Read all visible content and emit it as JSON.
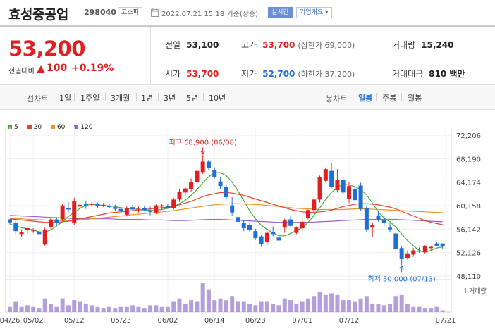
{
  "header": {
    "name": "효성중공업",
    "code": "298040",
    "market": "코스피",
    "time": "2022.07.21 15:18 기준(장중)",
    "live": "실시간",
    "company_info": "기업개요 ▾"
  },
  "quote": {
    "price": "53,200",
    "change_label": "전일대비",
    "change": "100",
    "change_pct": "+0.19%",
    "prev": {
      "label": "전일",
      "value": "53,100"
    },
    "high": {
      "label": "고가",
      "value": "53,700",
      "sub": "(상한가 69,000)"
    },
    "volume": {
      "label": "거래량",
      "value": "15,240"
    },
    "open": {
      "label": "시가",
      "value": "53,700"
    },
    "low": {
      "label": "저가",
      "value": "52,700",
      "sub": "(하한가 37,200)"
    },
    "amount": {
      "label": "거래대금",
      "value": "810 백만"
    }
  },
  "periods": {
    "line_label": "선차트",
    "line_items": [
      "1일",
      "1주일",
      "3개월",
      "1년",
      "3년",
      "5년",
      "10년"
    ],
    "candle_label": "봉차트",
    "candle_items": [
      "일봉",
      "주봉",
      "월봉"
    ],
    "active": "일봉"
  },
  "colors": {
    "up": "#e02020",
    "down": "#1e6fd9",
    "ma5": "#44aa33",
    "ma20": "#e8442a",
    "ma60": "#e8952a",
    "ma120": "#9a5fd0",
    "volume": "#9a7fcf"
  },
  "chart_data": {
    "type": "candlestick",
    "legend": [
      "5",
      "20",
      "60",
      "120"
    ],
    "ylim": [
      48110,
      72206
    ],
    "y_ticks": [
      "72,206",
      "68,190",
      "64,174",
      "60,158",
      "56,142",
      "52,126",
      "48,110"
    ],
    "x_ticks": [
      "04/26",
      "05/02",
      "05/12",
      "05/23",
      "06/02",
      "06/14",
      "06/23",
      "07/01",
      "07/12",
      "07/21"
    ],
    "high_label": "최고 68,900 (06/08)",
    "low_label": "최저 50,000 (07/13)",
    "volume_label": "거래량",
    "candles": [
      [
        57800,
        57900,
        57000,
        57300
      ],
      [
        57200,
        57600,
        55300,
        55800
      ],
      [
        55300,
        56100,
        54800,
        55600
      ],
      [
        56000,
        56600,
        55400,
        56300
      ],
      [
        55800,
        56300,
        55500,
        55900
      ],
      [
        55600,
        55900,
        54700,
        55300
      ],
      [
        53500,
        56400,
        53300,
        56000
      ],
      [
        56500,
        58100,
        56200,
        57800
      ],
      [
        57800,
        58200,
        56800,
        57200
      ],
      [
        57800,
        60500,
        57500,
        60200
      ],
      [
        59700,
        60800,
        59000,
        59500
      ],
      [
        57200,
        61500,
        56800,
        61000
      ],
      [
        60000,
        61200,
        59400,
        60300
      ],
      [
        60500,
        61000,
        59600,
        60200
      ],
      [
        60300,
        60800,
        60000,
        60500
      ],
      [
        60400,
        60700,
        59800,
        60100
      ],
      [
        60200,
        60600,
        59900,
        60300
      ],
      [
        60100,
        60500,
        59700,
        59900
      ],
      [
        59900,
        60300,
        59300,
        59600
      ],
      [
        59600,
        60200,
        58800,
        59200
      ],
      [
        58600,
        60100,
        58300,
        59800
      ],
      [
        59900,
        60300,
        59300,
        59500
      ],
      [
        59600,
        60000,
        59000,
        59800
      ],
      [
        59700,
        60100,
        59200,
        59400
      ],
      [
        59400,
        60000,
        58500,
        59100
      ],
      [
        59000,
        60500,
        58700,
        60200
      ],
      [
        60000,
        60500,
        59500,
        60200
      ],
      [
        60100,
        60500,
        59600,
        59800
      ],
      [
        59800,
        61500,
        59500,
        61200
      ],
      [
        61200,
        63000,
        60800,
        62500
      ],
      [
        62400,
        63500,
        61900,
        63100
      ],
      [
        63000,
        64800,
        62500,
        64200
      ],
      [
        64200,
        66400,
        63900,
        66100
      ],
      [
        65900,
        68900,
        65600,
        67700
      ],
      [
        67700,
        68000,
        66300,
        66600
      ],
      [
        66300,
        66700,
        64800,
        65100
      ],
      [
        64300,
        65000,
        63000,
        63500
      ],
      [
        63300,
        63800,
        61200,
        61600
      ],
      [
        60200,
        61600,
        58400,
        59000
      ],
      [
        58200,
        59000,
        56800,
        57400
      ],
      [
        57200,
        57700,
        55800,
        56300
      ],
      [
        56900,
        57300,
        55600,
        56000
      ],
      [
        55800,
        56200,
        54300,
        54600
      ],
      [
        54900,
        55200,
        53100,
        53600
      ],
      [
        54000,
        55800,
        53500,
        55500
      ],
      [
        55600,
        56600,
        54900,
        55300
      ],
      [
        54700,
        55200,
        53900,
        54200
      ],
      [
        56400,
        57900,
        55500,
        57600
      ],
      [
        57800,
        58500,
        56500,
        56700
      ],
      [
        55500,
        56600,
        55300,
        56400
      ],
      [
        56300,
        57900,
        55600,
        57400
      ],
      [
        58000,
        59500,
        57800,
        59400
      ],
      [
        59400,
        61400,
        59000,
        61200
      ],
      [
        61200,
        65300,
        60700,
        65000
      ],
      [
        64400,
        66700,
        64100,
        66400
      ],
      [
        66100,
        67400,
        63100,
        63400
      ],
      [
        62800,
        66400,
        62400,
        64600
      ],
      [
        64600,
        65000,
        62200,
        62400
      ],
      [
        61300,
        64200,
        60600,
        63500
      ],
      [
        63000,
        63500,
        60900,
        61100
      ],
      [
        63600,
        64100,
        59300,
        59600
      ],
      [
        59800,
        60200,
        55600,
        56100
      ],
      [
        56400,
        57300,
        54800,
        56800
      ],
      [
        58500,
        59200,
        57400,
        57800
      ],
      [
        57700,
        58500,
        56700,
        57200
      ],
      [
        56400,
        57200,
        55700,
        56100
      ],
      [
        55400,
        55900,
        52500,
        52800
      ],
      [
        52900,
        53300,
        50000,
        51000
      ],
      [
        51200,
        52500,
        50900,
        52000
      ],
      [
        51800,
        52900,
        51400,
        52500
      ],
      [
        52400,
        53000,
        52100,
        52300
      ],
      [
        52200,
        53400,
        51900,
        53200
      ],
      [
        52900,
        53300,
        52600,
        53100
      ],
      [
        53700,
        53900,
        53200,
        53300
      ],
      [
        53700,
        53700,
        52700,
        53200
      ]
    ],
    "ma5": [
      57000,
      56700,
      56400,
      56200,
      56000,
      55700,
      55600,
      56000,
      56700,
      57400,
      58300,
      59000,
      59700,
      60200,
      60400,
      60300,
      60200,
      60100,
      60000,
      59800,
      59700,
      59600,
      59500,
      59400,
      59300,
      59400,
      59500,
      59700,
      60000,
      60500,
      61100,
      61900,
      62900,
      64100,
      65100,
      65800,
      65800,
      65300,
      64200,
      62700,
      61000,
      59300,
      57900,
      56800,
      56100,
      55500,
      55000,
      55000,
      55400,
      55900,
      56400,
      57300,
      58500,
      59800,
      61200,
      62400,
      63300,
      63800,
      63700,
      63400,
      62900,
      62000,
      60600,
      59100,
      58000,
      57400,
      56500,
      55300,
      54200,
      53300,
      52500,
      52200,
      52500,
      52900,
      53100
    ],
    "ma20": [
      57900,
      57800,
      57700,
      57600,
      57500,
      57400,
      57300,
      57300,
      57300,
      57400,
      57500,
      57700,
      57900,
      58100,
      58300,
      58500,
      58700,
      58900,
      59000,
      59100,
      59200,
      59300,
      59400,
      59500,
      59600,
      59700,
      59800,
      59900,
      60100,
      60300,
      60600,
      60900,
      61300,
      61700,
      62000,
      62200,
      62400,
      62400,
      62300,
      62100,
      61900,
      61600,
      61300,
      61000,
      60700,
      60400,
      60100,
      59800,
      59500,
      59300,
      59100,
      59000,
      59000,
      59100,
      59200,
      59400,
      59700,
      60000,
      60200,
      60400,
      60500,
      60500,
      60400,
      60300,
      60100,
      59900,
      59600,
      59200,
      58800,
      58400,
      58000,
      57600,
      57300,
      57100,
      56900
    ],
    "ma60": [
      58000,
      57950,
      57900,
      57850,
      57800,
      57750,
      57700,
      57650,
      57600,
      57600,
      57600,
      57650,
      57700,
      57800,
      57900,
      58000,
      58100,
      58200,
      58300,
      58400,
      58500,
      58600,
      58700,
      58800,
      58900,
      59000,
      59100,
      59200,
      59300,
      59450,
      59600,
      59750,
      59900,
      60050,
      60200,
      60300,
      60400,
      60450,
      60500,
      60500,
      60450,
      60400,
      60350,
      60300,
      60200,
      60100,
      60000,
      59900,
      59800,
      59700,
      59650,
      59600,
      59550,
      59500,
      59500,
      59500,
      59500,
      59500,
      59550,
      59600,
      59600,
      59600,
      59550,
      59500,
      59450,
      59400,
      59350,
      59300,
      59250,
      59200,
      59150,
      59100,
      59050,
      59000,
      58950
    ],
    "ma120": [
      58500,
      58450,
      58400,
      58350,
      58300,
      58250,
      58200,
      58150,
      58100,
      58050,
      58000,
      57950,
      57900,
      57900,
      57900,
      57900,
      57900,
      57900,
      57850,
      57800,
      57800,
      57800,
      57800,
      57750,
      57700,
      57700,
      57700,
      57650,
      57600,
      57600,
      57600,
      57650,
      57700,
      57750,
      57800,
      57800,
      57800,
      57750,
      57700,
      57650,
      57600,
      57550,
      57500,
      57450,
      57400,
      57350,
      57300,
      57300,
      57300,
      57300,
      57300,
      57300,
      57350,
      57400,
      57450,
      57500,
      57550,
      57600,
      57650,
      57700,
      57750,
      57800,
      57800,
      57800,
      57800,
      57800,
      57800,
      57750,
      57700,
      57650,
      57600,
      57550,
      57500,
      57450,
      57400
    ],
    "volume": [
      3,
      6,
      3,
      4,
      3,
      2,
      8,
      5,
      3,
      8,
      4,
      7,
      6,
      5,
      4,
      3,
      2,
      3,
      2,
      3,
      3,
      4,
      3,
      2,
      4,
      4,
      3,
      3,
      6,
      8,
      5,
      7,
      6,
      17,
      13,
      7,
      8,
      7,
      9,
      6,
      6,
      5,
      4,
      6,
      6,
      5,
      4,
      8,
      7,
      5,
      6,
      8,
      9,
      12,
      10,
      11,
      10,
      7,
      7,
      6,
      8,
      9,
      5,
      5,
      4,
      5,
      9,
      10,
      5,
      3,
      3,
      2,
      2,
      3,
      1
    ]
  }
}
